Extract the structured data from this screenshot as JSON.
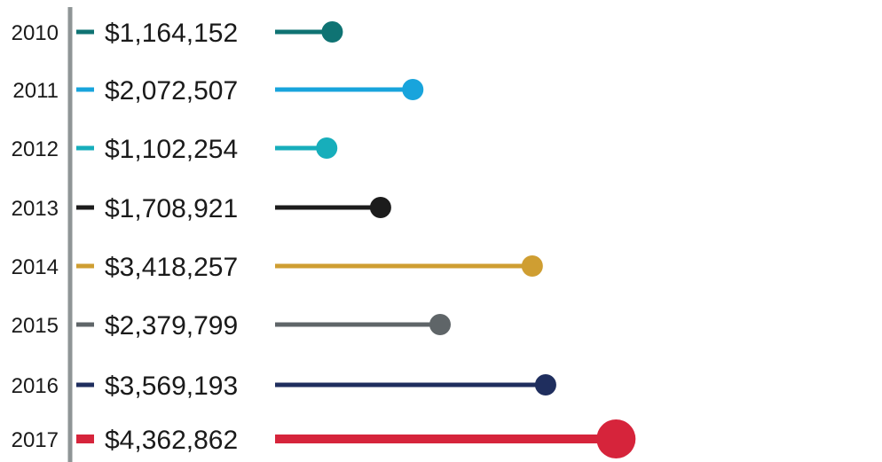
{
  "chart_data": {
    "type": "bar",
    "style": "lollipop-horizontal",
    "title": "",
    "xlabel": "",
    "ylabel": "",
    "grid": false,
    "legend": "none",
    "categories": [
      "2010",
      "2011",
      "2012",
      "2013",
      "2014",
      "2015",
      "2016",
      "2017"
    ],
    "values": [
      1164152,
      2072507,
      1102254,
      1708921,
      3418257,
      2379799,
      3569193,
      4362862
    ],
    "value_labels": [
      "$1,164,152",
      "$2,072,507",
      "$1,102,254",
      "$1,708,921",
      "$3,418,257",
      "$2,379,799",
      "$3,569,193",
      "$4,362,862"
    ],
    "colors": [
      "#0f7373",
      "#18a4dc",
      "#17aebb",
      "#1c1c1c",
      "#cf9e32",
      "#5f6568",
      "#1f2e5e",
      "#d6243b"
    ],
    "axis_color": "#8f9596"
  }
}
